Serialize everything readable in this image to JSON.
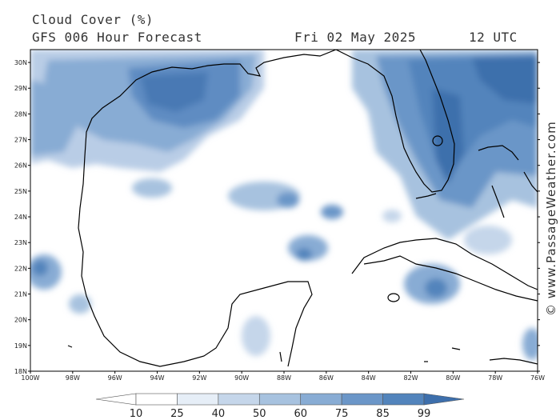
{
  "header": {
    "title": "Cloud Cover (%)",
    "model": "GFS 006 Hour Forecast",
    "date": "Fri 02 May 2025",
    "time": "12 UTC"
  },
  "credit": "© www.PassageWeather.com",
  "map": {
    "lat_range": [
      18,
      30.5
    ],
    "lon_range": [
      -100,
      -76
    ],
    "lat_ticks": [
      "18N",
      "19N",
      "20N",
      "21N",
      "22N",
      "23N",
      "24N",
      "25N",
      "26N",
      "27N",
      "28N",
      "29N",
      "30N"
    ],
    "lon_ticks": [
      "100W",
      "98W",
      "96W",
      "94W",
      "92W",
      "90W",
      "88W",
      "86W",
      "84W",
      "82W",
      "80W",
      "78W",
      "76W"
    ],
    "land_color": "#ffffff",
    "coast_color": "#000000"
  },
  "legend": {
    "values": [
      "10",
      "25",
      "40",
      "50",
      "60",
      "75",
      "85",
      "99"
    ],
    "colors": [
      "#ffffff",
      "#e6eef7",
      "#c5d6ea",
      "#a7c2df",
      "#88acd4",
      "#6b96c8",
      "#5284bc",
      "#3d6fac"
    ]
  }
}
